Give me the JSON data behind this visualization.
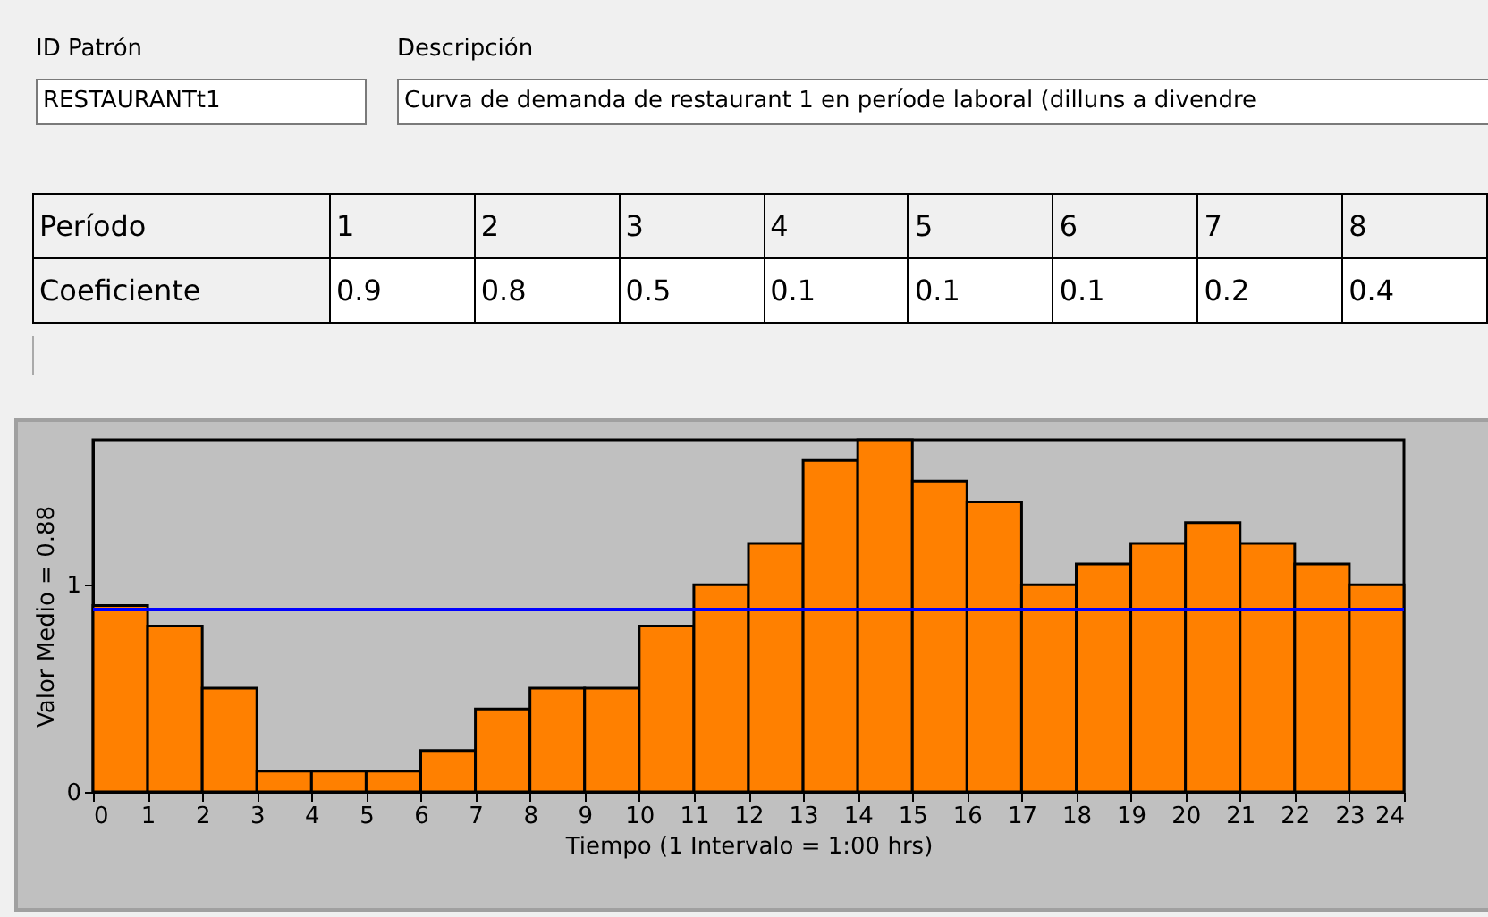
{
  "chart_data": {
    "type": "histogram",
    "annotations": [
      "ID Patrón",
      "RESTAURANTt1",
      "Descripción",
      "Curva de demanda de restaurant 1 en període laboral (dilluns a divendre",
      "Período",
      "1",
      "2",
      "3",
      "4",
      "5",
      "6",
      "7",
      "8",
      "Coeficiente",
      "0.9",
      "0.8",
      "0.5",
      "0.1",
      "0.1",
      "0.1",
      "0.2",
      "0.4"
    ],
    "xlabel": "Tiempo (1 Intervalo = 1:00 hrs)",
    "ylabel": "Valor Medio = 0.88",
    "bins": [
      0,
      1,
      2,
      3,
      4,
      5,
      6,
      7,
      8,
      9,
      10,
      11,
      12,
      13,
      14,
      15,
      16,
      17,
      18,
      19,
      20,
      21,
      22,
      23,
      24
    ],
    "values": [
      0.9,
      0.8,
      0.5,
      0.1,
      0.1,
      0.1,
      0.2,
      0.4,
      0.5,
      0.5,
      0.8,
      1.0,
      1.2,
      1.6,
      1.7,
      1.5,
      1.4,
      1.0,
      1.1,
      1.2,
      1.3,
      1.2,
      1.1,
      1.0
    ],
    "color": "#ff8000",
    "xlim": [
      0,
      24
    ],
    "xticks": [
      0,
      1,
      2,
      3,
      4,
      5,
      6,
      7,
      8,
      9,
      10,
      11,
      12,
      13,
      14,
      15,
      16,
      17,
      18,
      19,
      20,
      21,
      22,
      23,
      24
    ],
    "ylim": [
      0,
      1.7
    ],
    "yticks": [
      0,
      1
    ],
    "ref_lines": [
      {
        "axis": "y",
        "value": 0.88,
        "color": "#0000ff"
      }
    ],
    "grid": false
  }
}
